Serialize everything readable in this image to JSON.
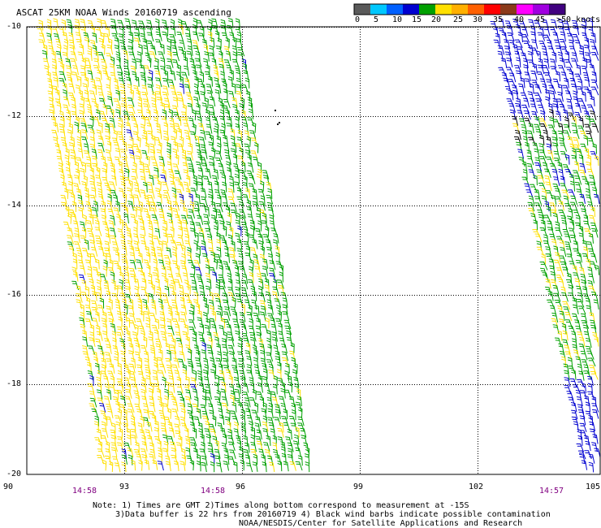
{
  "title": "ASCAT 25KM NOAA Winds 20160719 ascending",
  "colorbar": {
    "colors": [
      "#5a5a5a",
      "#00c8ff",
      "#0060ff",
      "#0000d0",
      "#00a000",
      "#ffe000",
      "#ffb000",
      "#ff6000",
      "#ff0000",
      "#8b3a1a",
      "#ff00ff",
      "#a000e0",
      "#400080"
    ],
    "labels": [
      "0",
      "5",
      "10",
      "15",
      "20",
      "25",
      "30",
      "35",
      "40",
      "45",
      ">50 knots"
    ]
  },
  "axes": {
    "lat_labels": [
      "-10",
      "-12",
      "-14",
      "-16",
      "-18",
      "-20"
    ],
    "lon_labels": [
      "90",
      "93",
      "96",
      "99",
      "102",
      "105"
    ]
  },
  "pass_times": [
    "14:58",
    "14:58",
    "14:57"
  ],
  "notes": [
    "Note: 1) Times are GMT 2)Times along bottom correspond to measurement at -15S",
    "3)Data buffer is 22 hrs from 20160719 4) Black wind barbs indicate possible contamination",
    "NOAA/NESDIS/Center for Satellite Applications and Research"
  ],
  "legend_colors": {
    "light": "#ffe000",
    "moderate": "#00a000",
    "blue": "#0000d0",
    "black": "#000000"
  }
}
